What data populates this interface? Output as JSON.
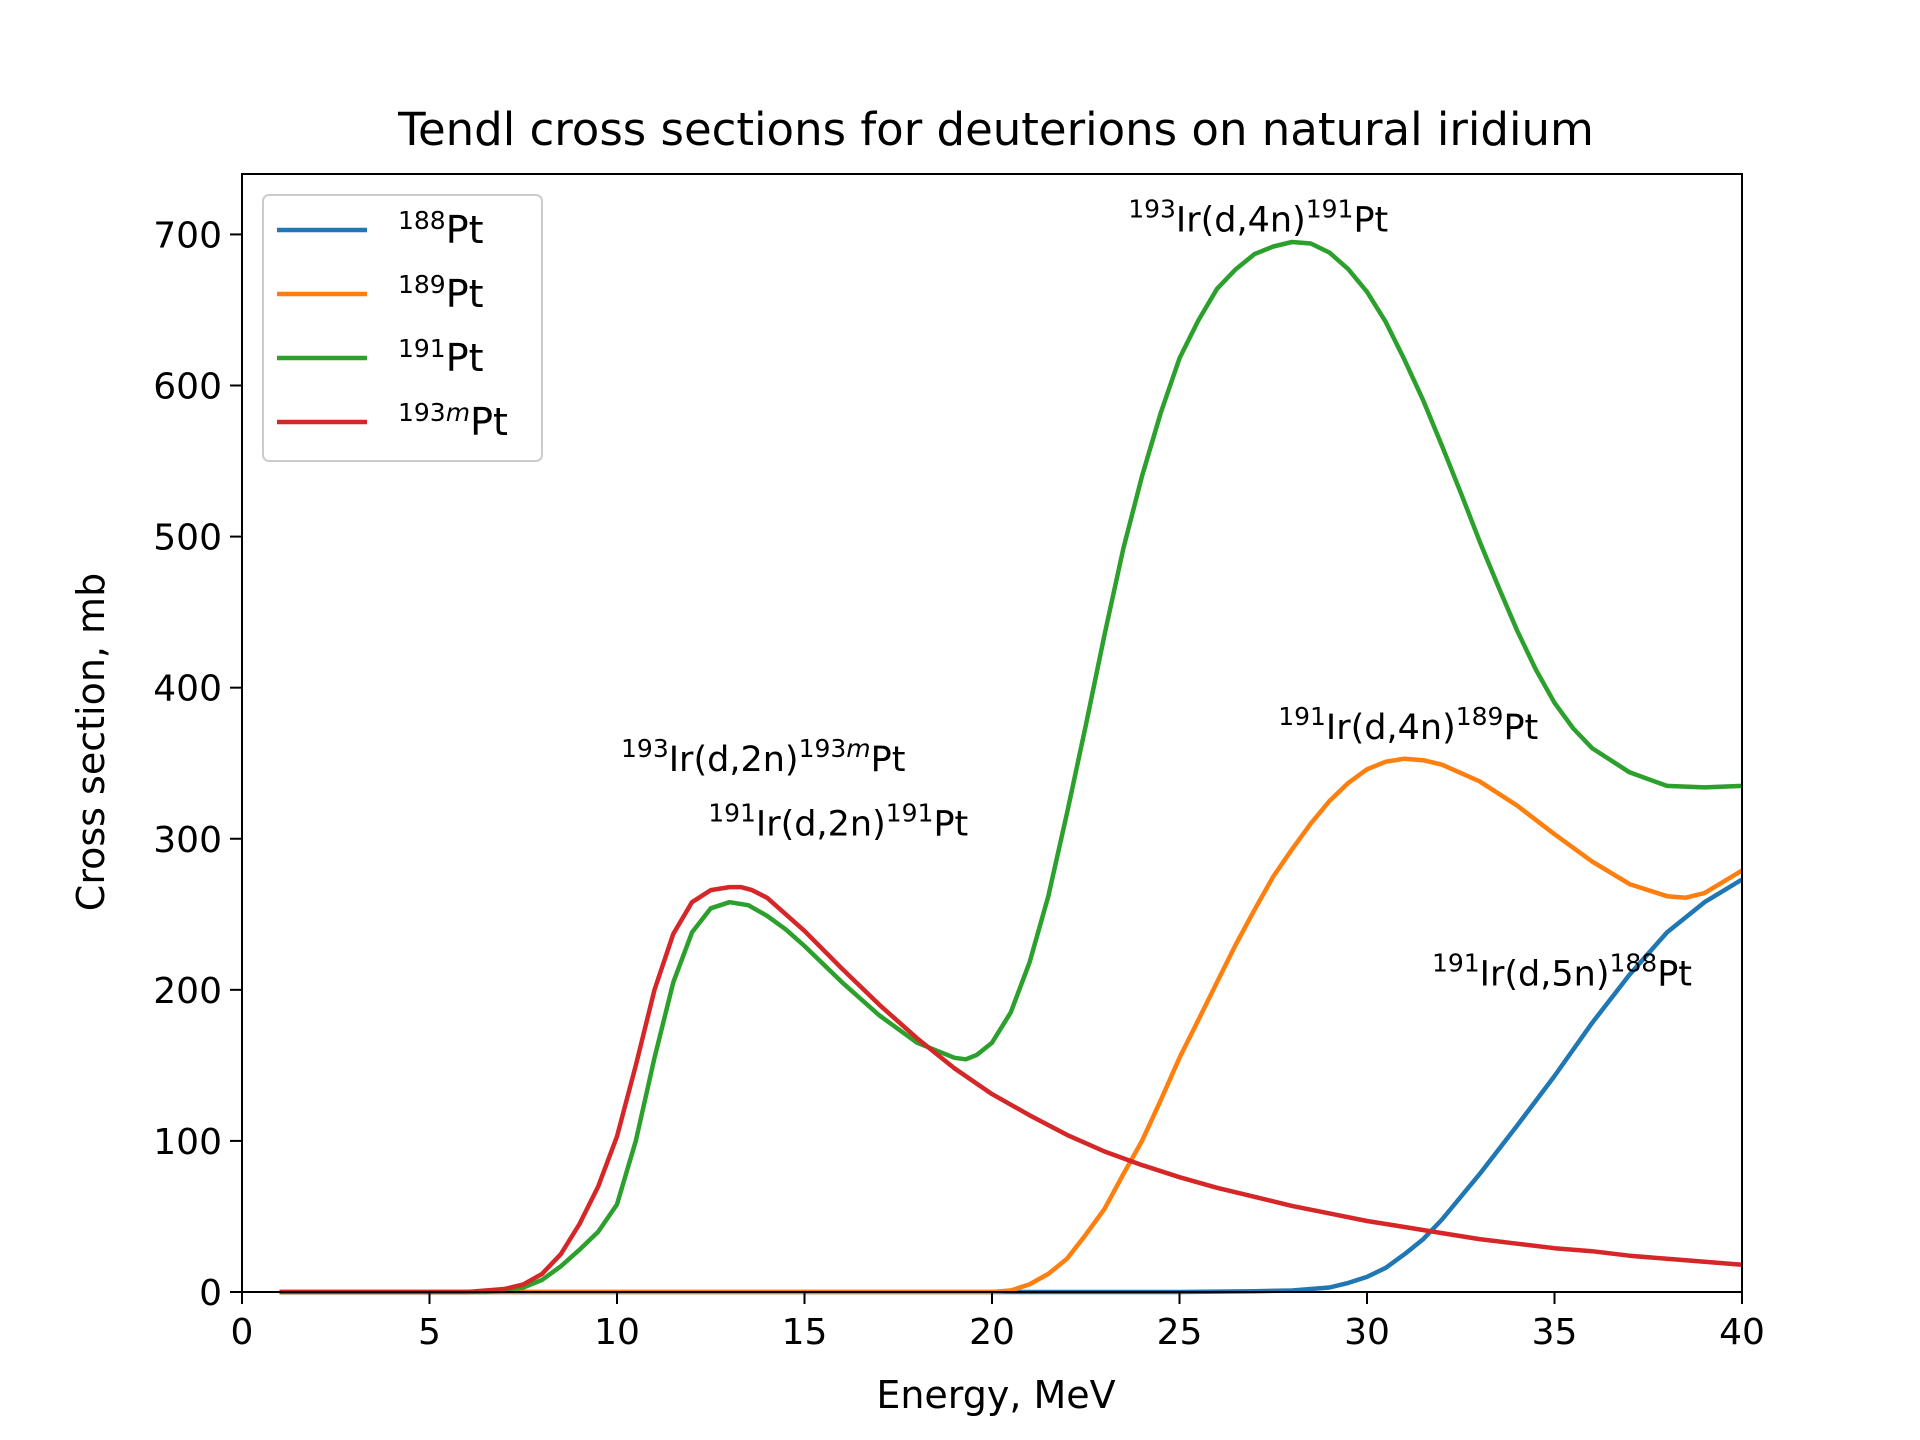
{
  "chart_data": {
    "type": "line",
    "title": "Tendl cross sections for deuterions on natural iridium",
    "xlabel": "Energy, MeV",
    "ylabel": "Cross section, mb",
    "xlim": [
      0,
      40
    ],
    "ylim": [
      0,
      740
    ],
    "xticks": [
      0,
      5,
      10,
      15,
      20,
      25,
      30,
      35,
      40
    ],
    "yticks": [
      0,
      100,
      200,
      300,
      400,
      500,
      600,
      700
    ],
    "grid": false,
    "legend": "upper-left",
    "series": [
      {
        "name_sup": "188",
        "name_base": "Pt",
        "color": "#1f77b4",
        "x": [
          1,
          25,
          27,
          28,
          29,
          29.5,
          30,
          30.5,
          31,
          31.5,
          32,
          33,
          34,
          35,
          36,
          37,
          38,
          39,
          40
        ],
        "y": [
          0,
          0,
          0.5,
          1,
          3,
          6,
          10,
          16,
          25,
          35,
          48,
          78,
          110,
          143,
          178,
          210,
          238,
          258,
          273
        ]
      },
      {
        "name_sup": "189",
        "name_base": "Pt",
        "color": "#ff7f0e",
        "x": [
          1,
          20,
          20.5,
          21,
          21.5,
          22,
          22.5,
          23,
          23.5,
          24,
          24.5,
          25,
          25.5,
          26,
          26.5,
          27,
          27.5,
          28,
          28.5,
          29,
          29.5,
          30,
          30.5,
          31,
          31.5,
          32,
          33,
          34,
          35,
          36,
          37,
          38,
          38.5,
          39,
          40
        ],
        "y": [
          0,
          0,
          1,
          5,
          12,
          22,
          38,
          55,
          78,
          100,
          127,
          155,
          180,
          205,
          230,
          253,
          275,
          293,
          310,
          325,
          337,
          346,
          351,
          353,
          352,
          349,
          338,
          322,
          303,
          285,
          270,
          262,
          261,
          264,
          279
        ]
      },
      {
        "name_sup": "191",
        "name_base": "Pt",
        "color": "#2ca02c",
        "x": [
          1,
          6.5,
          7,
          7.5,
          8,
          8.5,
          9,
          9.5,
          10,
          10.5,
          11,
          11.5,
          12,
          12.5,
          13,
          13.5,
          14,
          14.5,
          15,
          16,
          17,
          18,
          19,
          19.3,
          19.6,
          20,
          20.5,
          21,
          21.5,
          22,
          22.5,
          23,
          23.5,
          24,
          24.5,
          25,
          25.5,
          26,
          26.5,
          27,
          27.5,
          28,
          28.5,
          29,
          29.5,
          30,
          30.5,
          31,
          31.5,
          32,
          32.5,
          33,
          33.5,
          34,
          34.5,
          35,
          35.5,
          36,
          37,
          38,
          39,
          40
        ],
        "y": [
          0,
          0,
          1,
          3,
          8,
          17,
          28,
          40,
          58,
          100,
          155,
          205,
          238,
          254,
          258,
          256,
          249,
          240,
          229,
          205,
          183,
          165,
          155,
          154,
          157,
          165,
          185,
          218,
          262,
          317,
          375,
          435,
          492,
          540,
          582,
          618,
          643,
          664,
          677,
          687,
          692,
          695,
          694,
          688,
          677,
          662,
          642,
          617,
          590,
          560,
          529,
          497,
          467,
          438,
          412,
          390,
          373,
          360,
          344,
          335,
          334,
          335
        ]
      },
      {
        "name_sup": "193",
        "name_sup_italic": "m",
        "name_base": "Pt",
        "color": "#d62728",
        "x": [
          1,
          6,
          6.5,
          7,
          7.5,
          8,
          8.5,
          9,
          9.5,
          10,
          10.5,
          11,
          11.5,
          12,
          12.5,
          13,
          13.3,
          13.6,
          14,
          14.5,
          15,
          16,
          17,
          18,
          19,
          20,
          21,
          22,
          23,
          24,
          25,
          26,
          27,
          28,
          29,
          30,
          31,
          32,
          33,
          34,
          35,
          36,
          37,
          38,
          39,
          40
        ],
        "y": [
          0,
          0,
          1,
          2,
          5,
          12,
          25,
          45,
          70,
          103,
          150,
          200,
          237,
          258,
          266,
          268,
          268,
          266,
          261,
          250,
          239,
          214,
          190,
          168,
          148,
          131,
          117,
          104,
          93,
          84,
          76,
          69,
          63,
          57,
          52,
          47,
          43,
          39,
          35,
          32,
          29,
          27,
          24,
          22,
          20,
          18
        ]
      }
    ],
    "annotations": [
      {
        "sup1": "193",
        "base1": "Ir(d,4n)",
        "sup2": "191",
        "sup2_italic": "",
        "base2": "Pt",
        "color": "#008000",
        "x": 27.1,
        "y": 702
      },
      {
        "sup1": "193",
        "base1": "Ir(d,2n)",
        "sup2": "193",
        "sup2_italic": "m",
        "base2": "Pt",
        "color": "#ff0000",
        "x": 13.9,
        "y": 345
      },
      {
        "sup1": "191",
        "base1": "Ir(d,2n)",
        "sup2": "191",
        "sup2_italic": "",
        "base2": "Pt",
        "color": "#008000",
        "x": 15.9,
        "y": 302
      },
      {
        "sup1": "191",
        "base1": "Ir(d,4n)",
        "sup2": "189",
        "sup2_italic": "",
        "base2": "Pt",
        "color": "#ffa500",
        "x": 31.1,
        "y": 366
      },
      {
        "sup1": "191",
        "base1": "Ir(d,5n)",
        "sup2": "188",
        "sup2_italic": "",
        "base2": "Pt",
        "color": "#0000ff",
        "x": 35.2,
        "y": 203
      }
    ]
  }
}
